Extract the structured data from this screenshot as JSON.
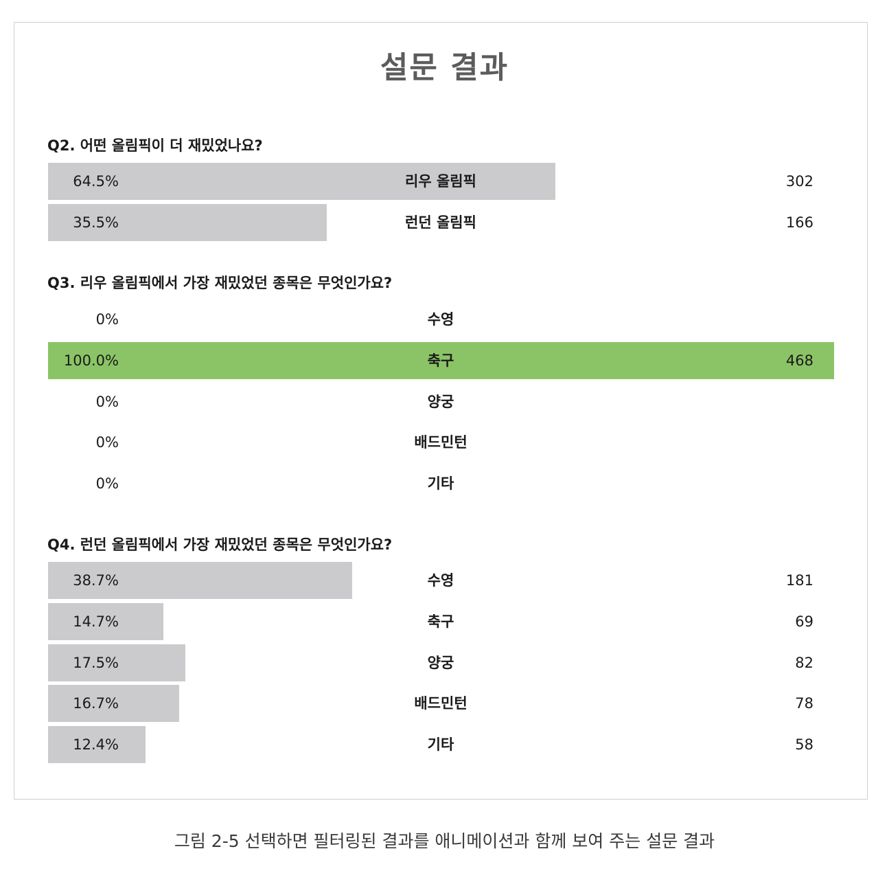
{
  "title": "설문 결과",
  "caption": "그림 2-5 선택하면 필터링된 결과를 애니메이션과 함께 보여 주는 설문 결과",
  "colors": {
    "bar": "#cbcbcd",
    "selected_bar": "#8bc466",
    "title": "#5c5c5c"
  },
  "chart_data": [
    {
      "type": "bar",
      "question": "Q2. 어떤 올림픽이 더 재밌었나요?",
      "rows": [
        {
          "percent": 64.5,
          "percent_label": "64.5%",
          "label": "리우 올림픽",
          "count": "302",
          "selected": false
        },
        {
          "percent": 35.5,
          "percent_label": "35.5%",
          "label": "런던 올림픽",
          "count": "166",
          "selected": false
        }
      ]
    },
    {
      "type": "bar",
      "question": "Q3. 리우 올림픽에서 가장 재밌었던 종목은 무엇인가요?",
      "rows": [
        {
          "percent": 0,
          "percent_label": "0%",
          "label": "수영",
          "count": "",
          "selected": false
        },
        {
          "percent": 100,
          "percent_label": "100.0%",
          "label": "축구",
          "count": "468",
          "selected": true
        },
        {
          "percent": 0,
          "percent_label": "0%",
          "label": "양궁",
          "count": "",
          "selected": false
        },
        {
          "percent": 0,
          "percent_label": "0%",
          "label": "배드민턴",
          "count": "",
          "selected": false
        },
        {
          "percent": 0,
          "percent_label": "0%",
          "label": "기타",
          "count": "",
          "selected": false
        }
      ]
    },
    {
      "type": "bar",
      "question": "Q4. 런던 올림픽에서 가장 재밌었던 종목은 무엇인가요?",
      "rows": [
        {
          "percent": 38.7,
          "percent_label": "38.7%",
          "label": "수영",
          "count": "181",
          "selected": false
        },
        {
          "percent": 14.7,
          "percent_label": "14.7%",
          "label": "축구",
          "count": "69",
          "selected": false
        },
        {
          "percent": 17.5,
          "percent_label": "17.5%",
          "label": "양궁",
          "count": "82",
          "selected": false
        },
        {
          "percent": 16.7,
          "percent_label": "16.7%",
          "label": "배드민턴",
          "count": "78",
          "selected": false
        },
        {
          "percent": 12.4,
          "percent_label": "12.4%",
          "label": "기타",
          "count": "58",
          "selected": false
        }
      ]
    }
  ]
}
